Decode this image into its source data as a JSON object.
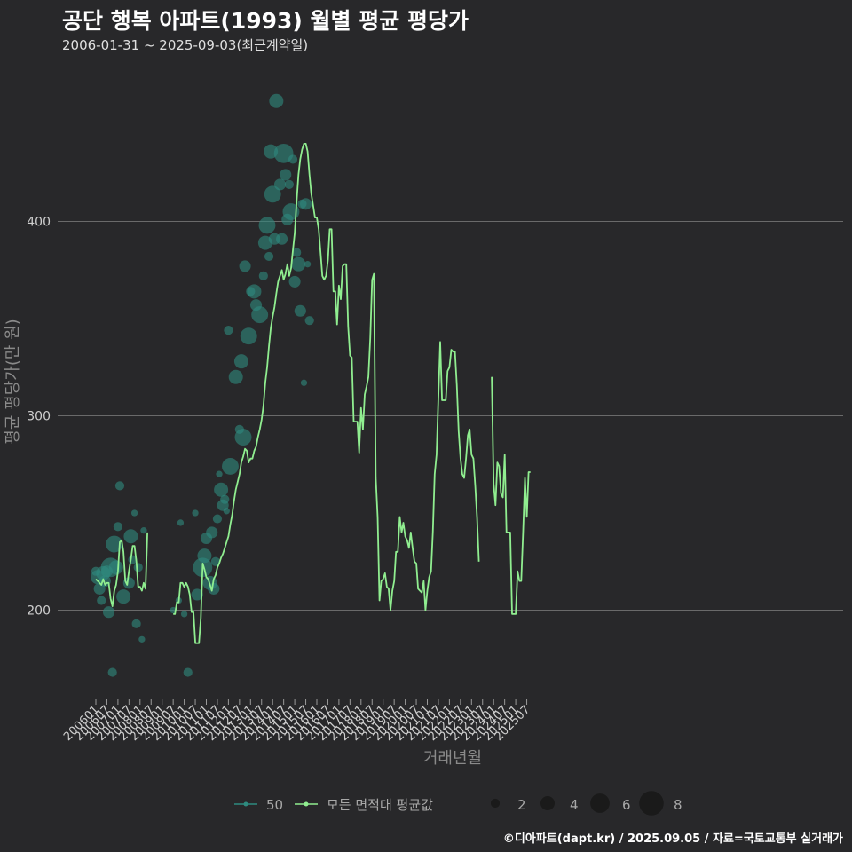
{
  "header": {
    "title": "공단 행복 아파트(1993) 월별 평균 평당가",
    "subtitle": "2006-01-31 ~ 2025-09-03(최근계약일)"
  },
  "footer": {
    "credit": "©디아파트(dapt.kr) / 2025.09.05 / 자료=국토교통부 실거래가"
  },
  "colors": {
    "background": "#28282a",
    "grid": "#6a6a6a",
    "area_series": "#2e8b7f",
    "avg_series": "#90ee90"
  },
  "chart_data": {
    "type": "scatter",
    "title": "공단 행복 아파트(1993) 월별 평균 평당가",
    "xlabel": "거래년월",
    "ylabel": "평균 평당가(만 원)",
    "ylim": [
      150,
      480
    ],
    "yticks": [
      200,
      300,
      400
    ],
    "x_start": "200601",
    "x_end": "202509",
    "xticks": [
      "200601",
      "200607",
      "200701",
      "200707",
      "200801",
      "200807",
      "200901",
      "200907",
      "201001",
      "201007",
      "201101",
      "201107",
      "201201",
      "201207",
      "201301",
      "201307",
      "201401",
      "201407",
      "201501",
      "201507",
      "201601",
      "201607",
      "201701",
      "201707",
      "201801",
      "201807",
      "201901",
      "201907",
      "202001",
      "202007",
      "202101",
      "202107",
      "202201",
      "202207",
      "202301",
      "202307",
      "202401",
      "202407",
      "202501",
      "202507"
    ],
    "legend": {
      "series_labels": [
        "50",
        "모든 면적대 평균값"
      ],
      "size_title": "",
      "size_values": [
        2,
        4,
        6,
        8
      ]
    },
    "series": [
      {
        "name": "50",
        "kind": "points",
        "points": [
          {
            "x": "200601",
            "y": 220,
            "n": 2
          },
          {
            "x": "200602",
            "y": 217,
            "n": 4
          },
          {
            "x": "200603",
            "y": 211,
            "n": 3
          },
          {
            "x": "200604",
            "y": 205,
            "n": 2
          },
          {
            "x": "200605",
            "y": 219,
            "n": 4
          },
          {
            "x": "200606",
            "y": 215,
            "n": 3
          },
          {
            "x": "200607",
            "y": 220,
            "n": 3
          },
          {
            "x": "200608",
            "y": 199,
            "n": 3
          },
          {
            "x": "200609",
            "y": 222,
            "n": 6
          },
          {
            "x": "200610",
            "y": 168,
            "n": 2
          },
          {
            "x": "200611",
            "y": 234,
            "n": 5
          },
          {
            "x": "200612",
            "y": 222,
            "n": 4
          },
          {
            "x": "200701",
            "y": 243,
            "n": 2
          },
          {
            "x": "200702",
            "y": 264,
            "n": 2
          },
          {
            "x": "200704",
            "y": 207,
            "n": 4
          },
          {
            "x": "200707",
            "y": 214,
            "n": 3
          },
          {
            "x": "200708",
            "y": 238,
            "n": 4
          },
          {
            "x": "200709",
            "y": 226,
            "n": 2
          },
          {
            "x": "200710",
            "y": 250,
            "n": 1
          },
          {
            "x": "200711",
            "y": 193,
            "n": 2
          },
          {
            "x": "200712",
            "y": 222,
            "n": 2
          },
          {
            "x": "200802",
            "y": 185,
            "n": 1
          },
          {
            "x": "200803",
            "y": 241,
            "n": 1
          },
          {
            "x": "200907",
            "y": 200,
            "n": 1
          },
          {
            "x": "200910",
            "y": 205,
            "n": 1
          },
          {
            "x": "200911",
            "y": 245,
            "n": 1
          },
          {
            "x": "201001",
            "y": 198,
            "n": 1
          },
          {
            "x": "201003",
            "y": 168,
            "n": 2
          },
          {
            "x": "201007",
            "y": 250,
            "n": 1
          },
          {
            "x": "201008",
            "y": 208,
            "n": 3
          },
          {
            "x": "201011",
            "y": 222,
            "n": 6
          },
          {
            "x": "201012",
            "y": 228,
            "n": 4
          },
          {
            "x": "201101",
            "y": 237,
            "n": 3
          },
          {
            "x": "201103",
            "y": 214,
            "n": 4
          },
          {
            "x": "201104",
            "y": 240,
            "n": 3
          },
          {
            "x": "201105",
            "y": 211,
            "n": 3
          },
          {
            "x": "201106",
            "y": 225,
            "n": 2
          },
          {
            "x": "201107",
            "y": 247,
            "n": 2
          },
          {
            "x": "201108",
            "y": 270,
            "n": 1
          },
          {
            "x": "201109",
            "y": 262,
            "n": 4
          },
          {
            "x": "201110",
            "y": 254,
            "n": 3
          },
          {
            "x": "201111",
            "y": 257,
            "n": 2
          },
          {
            "x": "201112",
            "y": 251,
            "n": 1
          },
          {
            "x": "201201",
            "y": 344,
            "n": 2
          },
          {
            "x": "201202",
            "y": 274,
            "n": 5
          },
          {
            "x": "201205",
            "y": 320,
            "n": 4
          },
          {
            "x": "201207",
            "y": 293,
            "n": 2
          },
          {
            "x": "201208",
            "y": 328,
            "n": 4
          },
          {
            "x": "201209",
            "y": 289,
            "n": 5
          },
          {
            "x": "201210",
            "y": 377,
            "n": 3
          },
          {
            "x": "201212",
            "y": 341,
            "n": 5
          },
          {
            "x": "201301",
            "y": 364,
            "n": 2
          },
          {
            "x": "201303",
            "y": 364,
            "n": 4
          },
          {
            "x": "201304",
            "y": 357,
            "n": 3
          },
          {
            "x": "201306",
            "y": 352,
            "n": 5
          },
          {
            "x": "201308",
            "y": 372,
            "n": 2
          },
          {
            "x": "201309",
            "y": 389,
            "n": 4
          },
          {
            "x": "201310",
            "y": 398,
            "n": 5
          },
          {
            "x": "201311",
            "y": 382,
            "n": 2
          },
          {
            "x": "201312",
            "y": 436,
            "n": 4
          },
          {
            "x": "201401",
            "y": 414,
            "n": 5
          },
          {
            "x": "201402",
            "y": 391,
            "n": 3
          },
          {
            "x": "201403",
            "y": 462,
            "n": 4
          },
          {
            "x": "201405",
            "y": 419,
            "n": 3
          },
          {
            "x": "201406",
            "y": 391,
            "n": 3
          },
          {
            "x": "201407",
            "y": 435,
            "n": 6
          },
          {
            "x": "201408",
            "y": 424,
            "n": 3
          },
          {
            "x": "201409",
            "y": 401,
            "n": 3
          },
          {
            "x": "201410",
            "y": 419,
            "n": 2
          },
          {
            "x": "201411",
            "y": 405,
            "n": 5
          },
          {
            "x": "201412",
            "y": 432,
            "n": 2
          },
          {
            "x": "201501",
            "y": 369,
            "n": 3
          },
          {
            "x": "201502",
            "y": 384,
            "n": 2
          },
          {
            "x": "201503",
            "y": 378,
            "n": 4
          },
          {
            "x": "201504",
            "y": 354,
            "n": 3
          },
          {
            "x": "201505",
            "y": 409,
            "n": 2
          },
          {
            "x": "201506",
            "y": 317,
            "n": 1
          },
          {
            "x": "201507",
            "y": 409,
            "n": 3
          },
          {
            "x": "201508",
            "y": 378,
            "n": 1
          },
          {
            "x": "201509",
            "y": 349,
            "n": 2
          }
        ]
      },
      {
        "name": "모든 면적대 평균값",
        "kind": "line",
        "segments": [
          {
            "start": "200601",
            "values": [
              216,
              215,
              214,
              213,
              216,
              213,
              214,
              214,
              206,
              202,
              210,
              213,
              220,
              235,
              236,
              230,
              215,
              213,
              220,
              226,
              233,
              233,
              225,
              212,
              212,
              210,
              214,
              211,
              240
            ]
          },
          {
            "start": "200907",
            "values": [
              198,
              198,
              204,
              204,
              214,
              214,
              212,
              214,
              212,
              208,
              199,
              199,
              183,
              183,
              183,
              196,
              224,
              221,
              217,
              216,
              213,
              210,
              216,
              218,
              222,
              224,
              227,
              229,
              232,
              235,
              238,
              244,
              249,
              256,
              262,
              266,
              270,
              276,
              279,
              283,
              282,
              276,
              278,
              278,
              282,
              284,
              289,
              293,
              298,
              305,
              317,
              325,
              336,
              345,
              351,
              356,
              363,
              369,
              372,
              375,
              370,
              373,
              378,
              372,
              376,
              385,
              394,
              410,
              424,
              432,
              437,
              440,
              440,
              436,
              424,
              414,
              408,
              402,
              402,
              396,
              384,
              372,
              370,
              372,
              380,
              396,
              396,
              364,
              364,
              347,
              367,
              360,
              377,
              378,
              378,
              346,
              331,
              330,
              297,
              297,
              297,
              281,
              304,
              293,
              311,
              315,
              320,
              340,
              370,
              373,
              268,
              248,
              205,
              215,
              216,
              219,
              212,
              211,
              200,
              210,
              215,
              230,
              230,
              248,
              240,
              245,
              238,
              236,
              232,
              240,
              232,
              225,
              224,
              211,
              210,
              209,
              215,
              200,
              210,
              217,
              220,
              240,
              270,
              280,
              310,
              338,
              308,
              308,
              308,
              323,
              325,
              334,
              333,
              333,
              316,
              292,
              278,
              270,
              268,
              278,
              290,
              293,
              280,
              278,
              264,
              248,
              225
            ]
          },
          {
            "start": "202312",
            "values": [
              320,
              265,
              254,
              276,
              274,
              260,
              258,
              280,
              240,
              240,
              240,
              198,
              198,
              198,
              220,
              215,
              215,
              240,
              268,
              248,
              271,
              271
            ]
          }
        ]
      }
    ]
  }
}
